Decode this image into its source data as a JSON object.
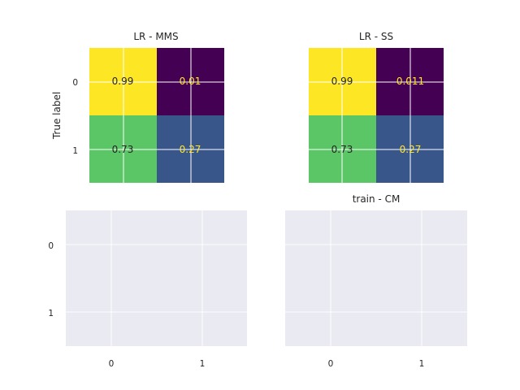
{
  "chart_data": [
    {
      "type": "heatmap",
      "title": "LR - MMS",
      "ylabel": "True label",
      "yticks": [
        "0",
        "1"
      ],
      "xticks": [],
      "values": [
        [
          0.99,
          0.01
        ],
        [
          0.73,
          0.27
        ]
      ],
      "labels": [
        [
          "0.99",
          "0.01"
        ],
        [
          "0.73",
          "0.27"
        ]
      ],
      "colormap": "viridis",
      "grid": true
    },
    {
      "type": "heatmap",
      "title": "LR - SS",
      "ylabel": "",
      "yticks": [],
      "xticks": [],
      "values": [
        [
          0.99,
          0.011
        ],
        [
          0.73,
          0.27
        ]
      ],
      "labels": [
        [
          "0.99",
          "0.011"
        ],
        [
          "0.73",
          "0.27"
        ]
      ],
      "colormap": "viridis",
      "grid": true
    },
    {
      "type": "heatmap",
      "title": "",
      "ylabel": "",
      "yticks": [
        "0",
        "1"
      ],
      "xticks": [
        "0",
        "1"
      ],
      "values": [],
      "labels": [],
      "grid": true
    },
    {
      "type": "heatmap",
      "title": "train - CM",
      "ylabel": "",
      "yticks": [],
      "xticks": [
        "0",
        "1"
      ],
      "values": [],
      "labels": [],
      "grid": true
    }
  ],
  "colors": {
    "axes_bg": "#eaeaf2",
    "grid": "#ffffff",
    "text": "#262626",
    "dark_text": "#262626",
    "light_text": "#fde725"
  }
}
